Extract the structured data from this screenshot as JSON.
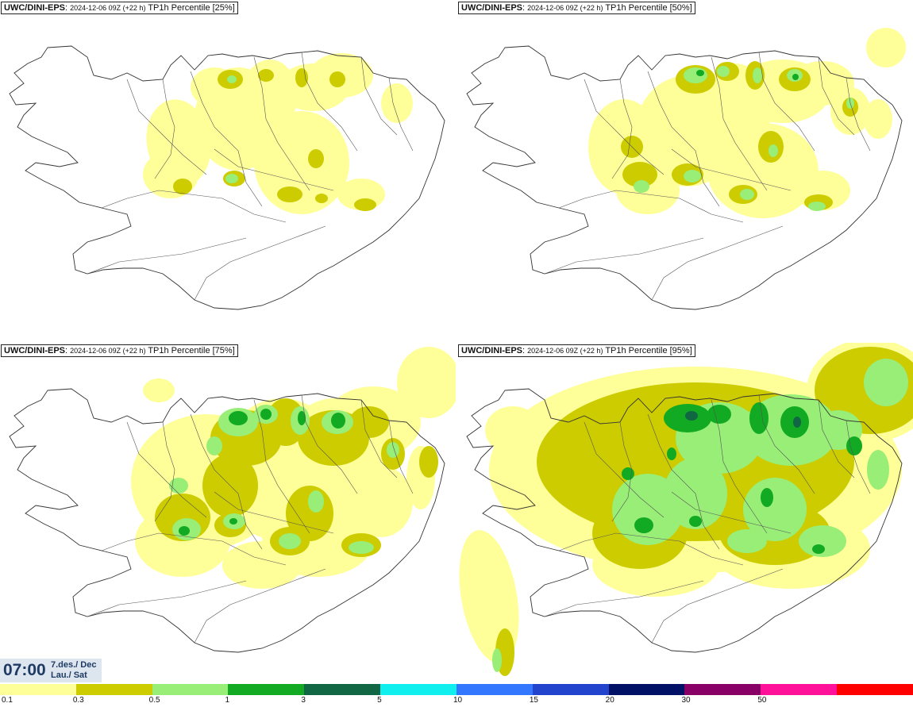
{
  "panels": [
    {
      "source": "UWC/DINI-EPS",
      "run": "2024-12-06 09Z (+22 h)",
      "field": "TP1h Percentile [25%]",
      "level": 0
    },
    {
      "source": "UWC/DINI-EPS",
      "run": "2024-12-06 09Z (+22 h)",
      "field": "TP1h Percentile [50%]",
      "level": 1
    },
    {
      "source": "UWC/DINI-EPS",
      "run": "2024-12-06 09Z (+22 h)",
      "field": "TP1h Percentile [75%]",
      "level": 2
    },
    {
      "source": "UWC/DINI-EPS",
      "run": "2024-12-06 09Z (+22 h)",
      "field": "TP1h Percentile [95%]",
      "level": 3
    }
  ],
  "clock": {
    "time": "07:00",
    "date_line1": "7.des./ Dec",
    "date_line2": "Lau./ Sat"
  },
  "legend": {
    "colors": [
      "#ffff99",
      "#cccc00",
      "#99ee77",
      "#11aa22",
      "#116644",
      "#11eeee",
      "#3377ff",
      "#2244cc",
      "#001166",
      "#880066",
      "#ff1199",
      "#ff0000"
    ],
    "labels": [
      "0.1",
      "0.3",
      "0.5",
      "1",
      "3",
      "5",
      "10",
      "15",
      "20",
      "30",
      "50"
    ]
  }
}
